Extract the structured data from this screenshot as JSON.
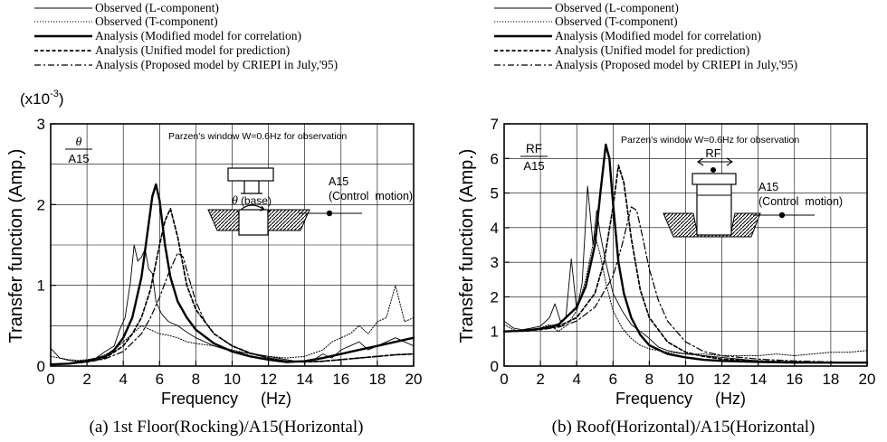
{
  "figure": {
    "legend": {
      "entries": [
        {
          "label": "Observed (L-component)",
          "style": "thin-solid"
        },
        {
          "label": "Observed (T-component)",
          "style": "dotted"
        },
        {
          "label": "Analysis (Modified model for correlation)",
          "style": "thick-solid"
        },
        {
          "label": "Analysis (Unified model for prediction)",
          "style": "dashed"
        },
        {
          "label": "Analysis (Proposed model by CRIEPI in July,'95)",
          "style": "dash-dot"
        }
      ]
    },
    "panels": [
      {
        "caption": "(a) 1st Floor(Rocking)/A15(Horizontal)",
        "ratio_num": "θ",
        "ratio_den": "A15",
        "multiplier": "(x10",
        "multiplier_exp": "-3",
        "multiplier_close": ")",
        "note": "Parzen's window W=0.6Hz for observation",
        "inset": {
          "label_main": "θ",
          "label_rest": "(base)",
          "point": "A15",
          "point_desc": "(Control  motion)"
        },
        "ylabel": "Transfer function (Amp.)",
        "xlabel": "Frequency     (Hz)"
      },
      {
        "caption": "(b) Roof(Horizontal)/A15(Horizontal)",
        "ratio_num": "RF",
        "ratio_den": "A15",
        "note": "Parzen's window W=0.6Hz for observation",
        "inset": {
          "label_main": "RF",
          "point": "A15",
          "point_desc": "(Control  motion)"
        },
        "ylabel": "Transfer function (Amp.)",
        "xlabel": "Frequency     (Hz)"
      }
    ]
  },
  "chart_data": [
    {
      "type": "line",
      "title": "(a) 1st Floor(Rocking)/A15(Horizontal)",
      "xlabel": "Frequency (Hz)",
      "ylabel": "Transfer function (Amp.)",
      "xlim": [
        0,
        20
      ],
      "ylim": [
        0,
        3
      ],
      "xticks": [
        0,
        2,
        4,
        6,
        8,
        10,
        12,
        14,
        16,
        18,
        20
      ],
      "yticks": [
        0,
        1,
        2,
        3
      ],
      "grid": true,
      "series": [
        {
          "name": "Observed (L-component)",
          "style": "thin-solid",
          "x": [
            0,
            0.5,
            1,
            1.5,
            2,
            2.5,
            3,
            3.5,
            3.8,
            4.1,
            4.4,
            4.6,
            4.8,
            5,
            5.2,
            5.4,
            5.6,
            5.8,
            6.1,
            6.5,
            7,
            7.5,
            8,
            8.5,
            9,
            10,
            11,
            12,
            13,
            13.5,
            14,
            14.5,
            15,
            15.5,
            16,
            16.5,
            17,
            17.5,
            18,
            18.5,
            19,
            19.5,
            20
          ],
          "y": [
            0.22,
            0.1,
            0.07,
            0.06,
            0.07,
            0.1,
            0.18,
            0.25,
            0.45,
            0.6,
            1.05,
            1.5,
            1.3,
            1.35,
            1.45,
            1.2,
            1.15,
            0.8,
            0.65,
            0.55,
            0.5,
            0.42,
            0.35,
            0.3,
            0.25,
            0.18,
            0.16,
            0.12,
            0.08,
            0.06,
            0.05,
            0.08,
            0.15,
            0.1,
            0.2,
            0.25,
            0.3,
            0.2,
            0.25,
            0.3,
            0.35,
            0.3,
            0.25
          ]
        },
        {
          "name": "Observed (T-component)",
          "style": "dotted",
          "x": [
            0,
            0.5,
            1,
            1.5,
            2,
            2.5,
            3,
            3.5,
            4,
            4.5,
            5,
            5.5,
            6,
            6.5,
            7,
            7.5,
            8,
            9,
            10,
            11,
            12,
            13,
            14,
            15,
            15.5,
            16,
            16.5,
            17,
            17.5,
            18,
            18.5,
            19,
            19.5,
            20
          ],
          "y": [
            0.12,
            0.1,
            0.08,
            0.07,
            0.08,
            0.1,
            0.14,
            0.2,
            0.3,
            0.4,
            0.5,
            0.45,
            0.4,
            0.38,
            0.35,
            0.3,
            0.28,
            0.25,
            0.2,
            0.15,
            0.12,
            0.1,
            0.12,
            0.2,
            0.3,
            0.35,
            0.4,
            0.5,
            0.4,
            0.55,
            0.6,
            1.0,
            0.55,
            0.6
          ]
        },
        {
          "name": "Analysis (Modified model for correlation)",
          "style": "thick-solid",
          "x": [
            0,
            1,
            2,
            3,
            3.5,
            4,
            4.5,
            5,
            5.3,
            5.6,
            5.8,
            6,
            6.3,
            6.6,
            7,
            7.5,
            8,
            9,
            10,
            11,
            12,
            13,
            14,
            15,
            16,
            17,
            18,
            19,
            20
          ],
          "y": [
            0.02,
            0.03,
            0.06,
            0.12,
            0.2,
            0.35,
            0.6,
            1.1,
            1.6,
            2.1,
            2.25,
            2.05,
            1.5,
            1.1,
            0.8,
            0.6,
            0.45,
            0.28,
            0.18,
            0.12,
            0.08,
            0.05,
            0.06,
            0.1,
            0.15,
            0.2,
            0.25,
            0.3,
            0.35
          ]
        },
        {
          "name": "Analysis (Unified model for prediction)",
          "style": "dashed",
          "x": [
            0,
            1,
            2,
            3,
            4,
            4.5,
            5,
            5.5,
            6,
            6.3,
            6.6,
            7,
            7.5,
            8,
            9,
            10,
            11,
            12,
            13,
            14,
            15,
            16,
            17,
            18,
            19,
            20
          ],
          "y": [
            0.02,
            0.03,
            0.05,
            0.1,
            0.25,
            0.4,
            0.6,
            0.95,
            1.5,
            1.8,
            1.95,
            1.6,
            1.0,
            0.7,
            0.4,
            0.25,
            0.16,
            0.1,
            0.06,
            0.05,
            0.06,
            0.08,
            0.1,
            0.12,
            0.14,
            0.15
          ]
        },
        {
          "name": "Analysis (Proposed model by CRIEPI in July,'95)",
          "style": "dash-dot",
          "x": [
            0,
            1,
            2,
            3,
            4,
            5,
            5.5,
            6,
            6.5,
            7,
            7.3,
            7.6,
            8,
            8.5,
            9,
            10,
            11,
            12,
            13,
            14,
            15,
            16,
            17,
            18,
            19,
            20
          ],
          "y": [
            0.02,
            0.03,
            0.05,
            0.09,
            0.18,
            0.4,
            0.6,
            0.85,
            1.15,
            1.4,
            1.35,
            1.1,
            0.8,
            0.55,
            0.4,
            0.25,
            0.16,
            0.1,
            0.06,
            0.05,
            0.06,
            0.08,
            0.1,
            0.12,
            0.14,
            0.15
          ]
        }
      ]
    },
    {
      "type": "line",
      "title": "(b) Roof(Horizontal)/A15(Horizontal)",
      "xlabel": "Frequency (Hz)",
      "ylabel": "Transfer function (Amp.)",
      "xlim": [
        0,
        20
      ],
      "ylim": [
        0,
        7
      ],
      "xticks": [
        0,
        2,
        4,
        6,
        8,
        10,
        12,
        14,
        16,
        18,
        20
      ],
      "yticks": [
        0,
        1,
        2,
        3,
        4,
        5,
        6,
        7
      ],
      "grid": true,
      "series": [
        {
          "name": "Observed (L-component)",
          "style": "thin-solid",
          "x": [
            0,
            0.5,
            1,
            1.5,
            2,
            2.5,
            2.8,
            3.1,
            3.4,
            3.7,
            4,
            4.3,
            4.6,
            4.9,
            5.1,
            5.3,
            5.6,
            6,
            6.5,
            7,
            7.5,
            8,
            8.5,
            9,
            10,
            11,
            12,
            13,
            14,
            15,
            16,
            17,
            18,
            19,
            20
          ],
          "y": [
            1.3,
            1.1,
            1.05,
            1.1,
            1.15,
            1.4,
            1.8,
            1.3,
            1.4,
            3.1,
            1.6,
            2.4,
            5.2,
            3.5,
            4.5,
            3.8,
            3.0,
            2.1,
            1.6,
            1.2,
            1.0,
            0.8,
            0.55,
            0.45,
            0.35,
            0.3,
            0.25,
            0.2,
            0.15,
            0.12,
            0.1,
            0.1,
            0.1,
            0.1,
            0.1
          ]
        },
        {
          "name": "Observed (T-component)",
          "style": "dotted",
          "x": [
            0,
            0.5,
            1,
            1.5,
            2,
            2.5,
            3,
            3.5,
            4,
            4.5,
            5,
            5.3,
            5.6,
            6,
            6.5,
            7,
            7.5,
            8,
            9,
            10,
            11,
            12,
            13,
            14,
            15,
            16,
            17,
            18,
            19,
            20
          ],
          "y": [
            1.2,
            1.05,
            1.0,
            1.05,
            1.1,
            1.2,
            1.0,
            1.2,
            1.6,
            2.5,
            3.8,
            3.2,
            2.4,
            1.6,
            1.1,
            0.8,
            0.6,
            0.5,
            0.4,
            0.35,
            0.35,
            0.3,
            0.3,
            0.3,
            0.35,
            0.3,
            0.35,
            0.4,
            0.4,
            0.45
          ]
        },
        {
          "name": "Analysis (Modified model for correlation)",
          "style": "thick-solid",
          "x": [
            0,
            1,
            2,
            3,
            4,
            4.5,
            5,
            5.3,
            5.6,
            5.8,
            6,
            6.3,
            6.6,
            7,
            7.5,
            8,
            9,
            10,
            11,
            12,
            14,
            16,
            18,
            20
          ],
          "y": [
            1.0,
            1.02,
            1.08,
            1.2,
            1.7,
            2.3,
            3.5,
            5.0,
            6.4,
            6.0,
            4.7,
            3.0,
            2.1,
            1.4,
            0.9,
            0.6,
            0.35,
            0.25,
            0.18,
            0.15,
            0.12,
            0.1,
            0.1,
            0.1
          ]
        },
        {
          "name": "Analysis (Unified model for prediction)",
          "style": "dashed",
          "x": [
            0,
            1,
            2,
            3,
            4,
            5,
            5.5,
            6,
            6.3,
            6.6,
            7,
            7.5,
            8,
            9,
            10,
            11,
            12,
            14,
            16,
            18,
            20
          ],
          "y": [
            1.0,
            1.02,
            1.06,
            1.15,
            1.4,
            2.1,
            3.0,
            4.6,
            5.8,
            5.3,
            3.7,
            2.2,
            1.4,
            0.7,
            0.4,
            0.28,
            0.2,
            0.15,
            0.12,
            0.1,
            0.1
          ]
        },
        {
          "name": "Analysis (Proposed model by CRIEPI in July,'95)",
          "style": "dash-dot",
          "x": [
            0,
            1,
            2,
            3,
            4,
            5,
            6,
            6.5,
            7,
            7.3,
            7.6,
            8,
            8.5,
            9,
            10,
            11,
            12,
            14,
            16,
            18,
            20
          ],
          "y": [
            1.0,
            1.02,
            1.05,
            1.12,
            1.3,
            1.7,
            2.6,
            3.5,
            4.6,
            4.5,
            3.8,
            2.8,
            1.9,
            1.3,
            0.7,
            0.42,
            0.3,
            0.2,
            0.15,
            0.12,
            0.1
          ]
        }
      ]
    }
  ]
}
